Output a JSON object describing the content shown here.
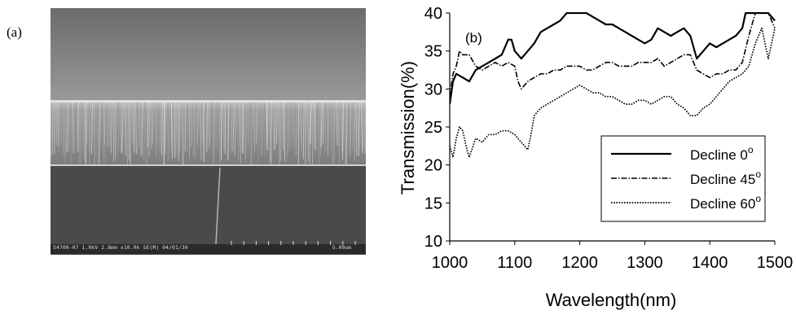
{
  "panel_a": {
    "label": "(a)",
    "caption": "S4700-07 1.0kV 2.8mm x10.0k SE(M) 04/01/30",
    "scale_bar": "5.00um"
  },
  "chart_data": {
    "type": "line",
    "panel_label": "(b)",
    "title": "",
    "xlabel": "Wavelength(nm)",
    "ylabel": "Transmission(%)",
    "xlim": [
      1000,
      1500
    ],
    "ylim": [
      10,
      40
    ],
    "xticks": [
      1000,
      1100,
      1200,
      1300,
      1400,
      1500
    ],
    "yticks": [
      10,
      15,
      20,
      25,
      30,
      35,
      40
    ],
    "grid": false,
    "legend_position": "bottom-right",
    "degree_symbol": "o",
    "series": [
      {
        "name": "Decline 0",
        "style": "solid",
        "x": [
          1000,
          1005,
          1010,
          1020,
          1030,
          1040,
          1050,
          1060,
          1070,
          1080,
          1090,
          1095,
          1100,
          1105,
          1110,
          1120,
          1130,
          1140,
          1150,
          1160,
          1170,
          1180,
          1190,
          1200,
          1210,
          1220,
          1230,
          1240,
          1250,
          1260,
          1270,
          1280,
          1290,
          1300,
          1310,
          1320,
          1330,
          1340,
          1350,
          1360,
          1370,
          1380,
          1390,
          1400,
          1410,
          1420,
          1430,
          1440,
          1450,
          1455,
          1460,
          1470,
          1480,
          1490,
          1500
        ],
        "y": [
          28,
          31,
          32,
          31.5,
          31,
          32.5,
          33,
          33.5,
          34,
          34.5,
          36.5,
          36.5,
          35,
          34.5,
          34,
          35,
          36,
          37.5,
          38,
          38.5,
          39,
          40,
          40,
          40,
          40,
          39.5,
          39,
          38.5,
          38.5,
          38,
          37.5,
          37,
          36.5,
          36,
          36.5,
          38,
          37.5,
          37,
          37.5,
          38,
          37,
          34,
          35,
          36,
          35.5,
          36,
          36.5,
          37,
          38,
          40,
          40,
          40,
          40,
          40,
          39
        ]
      },
      {
        "name": "Decline 45",
        "style": "dashdot",
        "x": [
          1000,
          1005,
          1010,
          1015,
          1020,
          1030,
          1040,
          1050,
          1060,
          1070,
          1080,
          1090,
          1100,
          1105,
          1110,
          1120,
          1130,
          1140,
          1150,
          1160,
          1170,
          1180,
          1190,
          1200,
          1210,
          1220,
          1230,
          1240,
          1250,
          1260,
          1270,
          1280,
          1290,
          1300,
          1310,
          1320,
          1330,
          1340,
          1350,
          1360,
          1370,
          1380,
          1390,
          1400,
          1410,
          1420,
          1430,
          1440,
          1450,
          1460,
          1470,
          1480,
          1490,
          1500
        ],
        "y": [
          29,
          32,
          33,
          35,
          34.5,
          34.5,
          33,
          32.5,
          33,
          33.5,
          33,
          33.5,
          33,
          31,
          30,
          31,
          31.5,
          32,
          32,
          32.5,
          32.5,
          33,
          33,
          33,
          32.5,
          32.5,
          33,
          33.5,
          33.5,
          33,
          33,
          33,
          33.5,
          33.5,
          33.5,
          34,
          33,
          33.5,
          34,
          34.5,
          34.5,
          32.5,
          32,
          31.5,
          32,
          32,
          32.5,
          32.5,
          33.5,
          37,
          40,
          40,
          40,
          38
        ]
      },
      {
        "name": "Decline 60",
        "style": "dotted",
        "x": [
          1000,
          1005,
          1010,
          1015,
          1020,
          1025,
          1030,
          1040,
          1050,
          1060,
          1070,
          1080,
          1090,
          1100,
          1110,
          1115,
          1120,
          1125,
          1130,
          1140,
          1150,
          1160,
          1170,
          1180,
          1190,
          1200,
          1210,
          1220,
          1230,
          1240,
          1250,
          1260,
          1270,
          1280,
          1290,
          1300,
          1310,
          1320,
          1330,
          1340,
          1350,
          1360,
          1370,
          1380,
          1390,
          1400,
          1410,
          1420,
          1430,
          1440,
          1450,
          1460,
          1470,
          1480,
          1490,
          1500
        ],
        "y": [
          22.5,
          21,
          23.5,
          25,
          24.5,
          22.5,
          21,
          23.5,
          23,
          24,
          24,
          24.5,
          24.5,
          24,
          23,
          22.5,
          22,
          24,
          26.5,
          27.5,
          28,
          28.5,
          29,
          29.5,
          30,
          30.5,
          30,
          29.5,
          29.5,
          29,
          29,
          28.5,
          28,
          28,
          28.5,
          28.5,
          28,
          28.5,
          29,
          29,
          28,
          27.5,
          26.5,
          26.5,
          27.5,
          28,
          29,
          30,
          31,
          31.5,
          32,
          33,
          36,
          38,
          34,
          38
        ]
      }
    ]
  }
}
